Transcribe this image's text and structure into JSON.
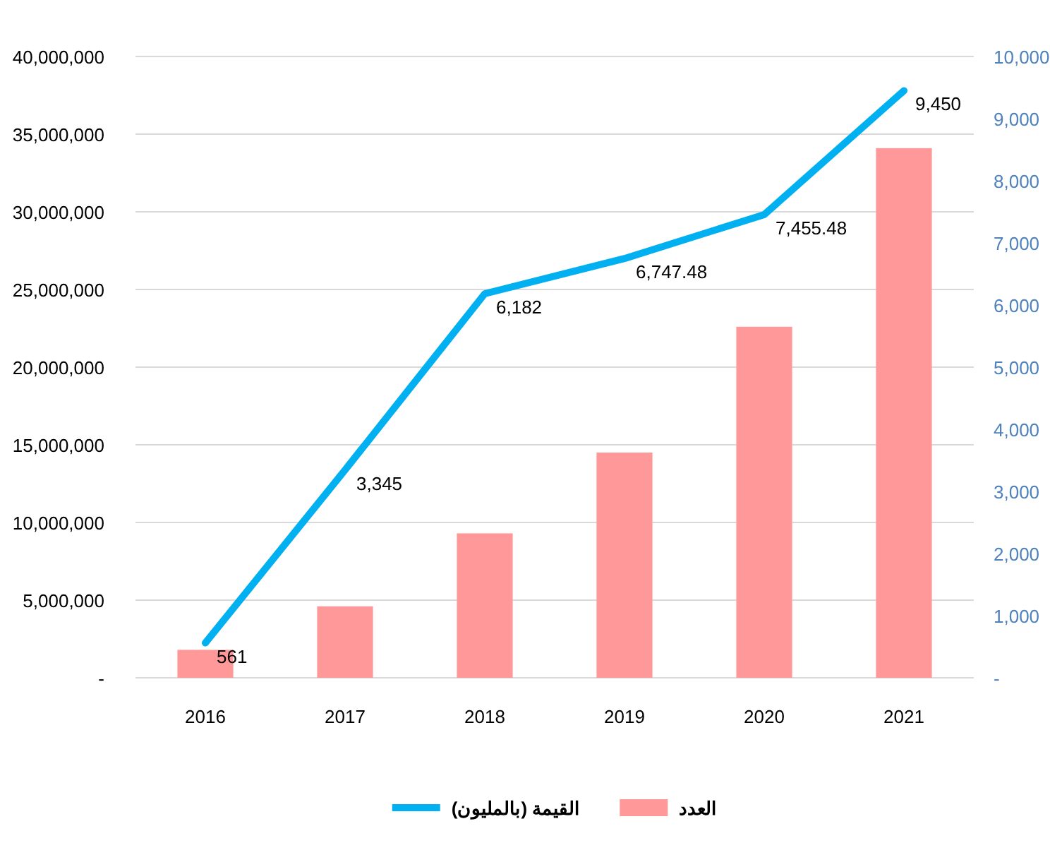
{
  "chart_data": {
    "type": "bar",
    "categories": [
      "2016",
      "2017",
      "2018",
      "2019",
      "2020",
      "2021"
    ],
    "series": [
      {
        "name": "العدد",
        "color": "#ff9999",
        "values": [
          1800000,
          4600000,
          9300000,
          14500000,
          22600000,
          34100000
        ]
      },
      {
        "name": "القيمة (بالمليون)",
        "type": "line",
        "axis": "y2",
        "color": "#00b0f0",
        "values": [
          561,
          3345,
          6182,
          6747.48,
          7455.48,
          9450
        ],
        "value_labels": [
          "561",
          "3,345",
          "6,182",
          "6,747.48",
          "7,455.48",
          "9,450"
        ]
      }
    ],
    "ylim": [
      0,
      40000000
    ],
    "yticks": [
      {
        "value": 0,
        "label": "-"
      },
      {
        "value": 5000000,
        "label": "5,000,000"
      },
      {
        "value": 10000000,
        "label": "10,000,000"
      },
      {
        "value": 15000000,
        "label": "15,000,000"
      },
      {
        "value": 20000000,
        "label": "20,000,000"
      },
      {
        "value": 25000000,
        "label": "25,000,000"
      },
      {
        "value": 30000000,
        "label": "30,000,000"
      },
      {
        "value": 35000000,
        "label": "35,000,000"
      },
      {
        "value": 40000000,
        "label": "40,000,000"
      }
    ],
    "y2lim": [
      0,
      10000
    ],
    "y2ticks": [
      {
        "value": 0,
        "label": "-"
      },
      {
        "value": 1000,
        "label": "1,000"
      },
      {
        "value": 2000,
        "label": "2,000"
      },
      {
        "value": 3000,
        "label": "3,000"
      },
      {
        "value": 4000,
        "label": "4,000"
      },
      {
        "value": 5000,
        "label": "5,000"
      },
      {
        "value": 6000,
        "label": "6,000"
      },
      {
        "value": 7000,
        "label": "7,000"
      },
      {
        "value": 8000,
        "label": "8,000"
      },
      {
        "value": 9000,
        "label": "9,000"
      },
      {
        "value": 10000,
        "label": "10,000"
      }
    ],
    "grid": "y",
    "legend": "bottom",
    "marker": "none",
    "line_style": "solid"
  }
}
